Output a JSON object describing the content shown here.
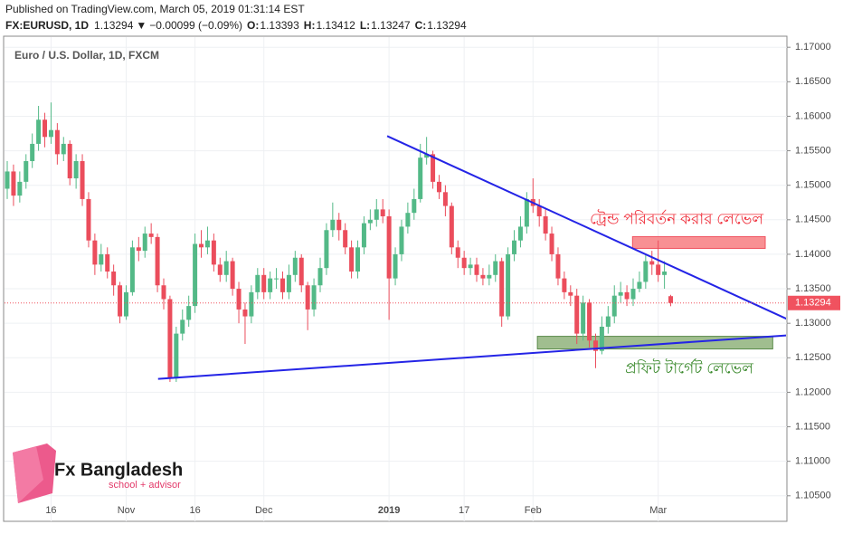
{
  "header": {
    "published": "Published on TradingView.com, March 05, 2019 01:31:14 EST",
    "symbol": "FX:EURUSD, 1D",
    "last": "1.13294",
    "arrow": "▼",
    "change": "−0.00099 (−0.09%)",
    "ohlc": [
      {
        "label": "O:",
        "value": "1.13393"
      },
      {
        "label": "H:",
        "value": "1.13412"
      },
      {
        "label": "L:",
        "value": "1.13247"
      },
      {
        "label": "C:",
        "value": "1.13294"
      }
    ]
  },
  "logo": {
    "name": "Fx Bangladesh",
    "tagline": "school + advisor"
  },
  "chart_data": {
    "type": "candlestick",
    "title": "Euro / U.S. Dollar, 1D, FXCM",
    "categories": [
      null,
      null,
      null,
      null,
      null,
      null,
      null,
      "16",
      null,
      null,
      null,
      null,
      null,
      null,
      null,
      null,
      null,
      null,
      null,
      "Nov",
      null,
      null,
      null,
      null,
      null,
      null,
      null,
      null,
      null,
      null,
      "16",
      null,
      null,
      null,
      null,
      null,
      null,
      null,
      null,
      null,
      null,
      "Dec",
      null,
      null,
      null,
      null,
      null,
      null,
      null,
      null,
      null,
      null,
      null,
      null,
      null,
      null,
      null,
      null,
      null,
      null,
      null,
      "2019",
      null,
      null,
      null,
      null,
      null,
      null,
      null,
      null,
      null,
      null,
      null,
      "17",
      null,
      null,
      null,
      null,
      null,
      null,
      null,
      null,
      null,
      null,
      "Feb",
      null,
      null,
      null,
      null,
      null,
      null,
      null,
      null,
      null,
      null,
      null,
      null,
      null,
      null,
      null,
      null,
      null,
      null,
      null,
      "Mar",
      null,
      null
    ],
    "open": [
      1.1495,
      1.152,
      1.1485,
      1.1505,
      1.1535,
      1.156,
      1.1595,
      1.157,
      1.158,
      1.1545,
      1.156,
      1.151,
      1.1535,
      1.148,
      1.142,
      1.1385,
      1.14,
      1.1375,
      1.1355,
      1.131,
      1.1345,
      1.141,
      1.1405,
      1.143,
      1.1425,
      1.1355,
      1.1335,
      1.122,
      1.1285,
      1.1305,
      1.1325,
      1.1415,
      1.141,
      1.142,
      1.1385,
      1.137,
      1.139,
      1.135,
      1.132,
      1.131,
      1.1345,
      1.137,
      1.1345,
      1.1365,
      1.1365,
      1.1345,
      1.137,
      1.1395,
      1.1355,
      1.132,
      1.1355,
      1.138,
      1.1435,
      1.145,
      1.1435,
      1.141,
      1.1375,
      1.141,
      1.1445,
      1.145,
      1.1465,
      1.1455,
      1.1365,
      1.14,
      1.144,
      1.146,
      1.148,
      1.154,
      1.1545,
      1.1505,
      1.149,
      1.147,
      1.141,
      1.1395,
      1.138,
      1.1385,
      1.137,
      1.1365,
      1.137,
      1.139,
      1.131,
      1.14,
      1.142,
      1.144,
      1.148,
      1.147,
      1.1455,
      1.143,
      1.14,
      1.1365,
      1.1345,
      1.134,
      1.1285,
      1.133,
      1.1275,
      1.126,
      1.1295,
      1.131,
      1.134,
      1.1345,
      1.1335,
      1.135,
      1.136,
      1.139,
      1.1385,
      1.137,
      1.13393
    ],
    "high": [
      1.1535,
      1.153,
      1.152,
      1.1545,
      1.1575,
      1.1615,
      1.1605,
      1.162,
      1.159,
      1.157,
      1.1565,
      1.1545,
      1.1545,
      1.149,
      1.143,
      1.1415,
      1.141,
      1.1385,
      1.136,
      1.1355,
      1.142,
      1.1425,
      1.144,
      1.1445,
      1.143,
      1.1365,
      1.134,
      1.1295,
      1.132,
      1.134,
      1.143,
      1.1435,
      1.144,
      1.143,
      1.1395,
      1.1405,
      1.1395,
      1.136,
      1.133,
      1.1355,
      1.138,
      1.138,
      1.1375,
      1.138,
      1.1375,
      1.1385,
      1.1405,
      1.14,
      1.136,
      1.1365,
      1.1395,
      1.1445,
      1.1475,
      1.146,
      1.1445,
      1.142,
      1.142,
      1.1455,
      1.1465,
      1.148,
      1.148,
      1.1465,
      1.141,
      1.145,
      1.1475,
      1.1495,
      1.156,
      1.157,
      1.155,
      1.1515,
      1.15,
      1.1475,
      1.142,
      1.1405,
      1.1395,
      1.1395,
      1.138,
      1.1385,
      1.14,
      1.1395,
      1.141,
      1.1435,
      1.1455,
      1.149,
      1.151,
      1.148,
      1.1465,
      1.144,
      1.141,
      1.1375,
      1.1355,
      1.135,
      1.134,
      1.1335,
      1.1285,
      1.131,
      1.1325,
      1.1355,
      1.136,
      1.1355,
      1.1365,
      1.1375,
      1.14,
      1.1405,
      1.142,
      1.139,
      1.13412
    ],
    "low": [
      1.148,
      1.147,
      1.1475,
      1.1495,
      1.1525,
      1.155,
      1.1555,
      1.156,
      1.153,
      1.1535,
      1.15,
      1.1495,
      1.147,
      1.141,
      1.137,
      1.1375,
      1.1365,
      1.134,
      1.13,
      1.1305,
      1.134,
      1.139,
      1.1395,
      1.1415,
      1.1345,
      1.132,
      1.1215,
      1.1215,
      1.1275,
      1.1295,
      1.1315,
      1.1395,
      1.14,
      1.1375,
      1.136,
      1.136,
      1.134,
      1.13,
      1.127,
      1.13,
      1.1335,
      1.1335,
      1.1335,
      1.135,
      1.1335,
      1.1335,
      1.136,
      1.1345,
      1.129,
      1.131,
      1.1345,
      1.137,
      1.1425,
      1.142,
      1.14,
      1.1365,
      1.1365,
      1.14,
      1.1435,
      1.144,
      1.1445,
      1.1305,
      1.1355,
      1.139,
      1.143,
      1.145,
      1.1475,
      1.153,
      1.1495,
      1.148,
      1.1455,
      1.14,
      1.138,
      1.137,
      1.137,
      1.136,
      1.1355,
      1.1355,
      1.136,
      1.1295,
      1.1305,
      1.139,
      1.141,
      1.143,
      1.146,
      1.144,
      1.142,
      1.139,
      1.1355,
      1.1335,
      1.1325,
      1.127,
      1.1275,
      1.1265,
      1.1235,
      1.1255,
      1.1285,
      1.13,
      1.133,
      1.1325,
      1.1325,
      1.1345,
      1.135,
      1.137,
      1.136,
      1.135,
      1.13247
    ],
    "close": [
      1.152,
      1.1485,
      1.1505,
      1.1535,
      1.156,
      1.1595,
      1.157,
      1.158,
      1.1545,
      1.156,
      1.151,
      1.1535,
      1.148,
      1.142,
      1.1385,
      1.14,
      1.1375,
      1.1355,
      1.131,
      1.1345,
      1.141,
      1.1405,
      1.143,
      1.1425,
      1.1355,
      1.1335,
      1.122,
      1.1285,
      1.1305,
      1.1325,
      1.1415,
      1.141,
      1.142,
      1.1385,
      1.137,
      1.139,
      1.135,
      1.132,
      1.131,
      1.1345,
      1.137,
      1.1345,
      1.1365,
      1.1365,
      1.1345,
      1.137,
      1.1395,
      1.1355,
      1.132,
      1.1355,
      1.138,
      1.1435,
      1.145,
      1.1435,
      1.141,
      1.1375,
      1.141,
      1.1445,
      1.145,
      1.1465,
      1.1455,
      1.1365,
      1.14,
      1.144,
      1.146,
      1.148,
      1.154,
      1.1545,
      1.1505,
      1.149,
      1.147,
      1.141,
      1.1395,
      1.138,
      1.1385,
      1.137,
      1.1365,
      1.137,
      1.139,
      1.131,
      1.14,
      1.142,
      1.144,
      1.148,
      1.147,
      1.1455,
      1.143,
      1.14,
      1.1365,
      1.1345,
      1.134,
      1.1285,
      1.133,
      1.1275,
      1.126,
      1.1295,
      1.131,
      1.134,
      1.1345,
      1.1335,
      1.135,
      1.136,
      1.139,
      1.1385,
      1.137,
      1.1375,
      1.13294
    ],
    "up_color": "#53b987",
    "down_color": "#eb4d5c",
    "ylim": [
      1.1013,
      1.1716
    ],
    "yticks": [
      {
        "value": 1.105,
        "label": "1.10500"
      },
      {
        "value": 1.11,
        "label": "1.11000"
      },
      {
        "value": 1.115,
        "label": "1.11500"
      },
      {
        "value": 1.12,
        "label": "1.12000"
      },
      {
        "value": 1.125,
        "label": "1.12500"
      },
      {
        "value": 1.13,
        "label": "1.13000"
      },
      {
        "value": 1.135,
        "label": "1.13500"
      },
      {
        "value": 1.14,
        "label": "1.14000"
      },
      {
        "value": 1.145,
        "label": "1.14500"
      },
      {
        "value": 1.15,
        "label": "1.15000"
      },
      {
        "value": 1.155,
        "label": "1.15500"
      },
      {
        "value": 1.16,
        "label": "1.16000"
      },
      {
        "value": 1.165,
        "label": "1.16500"
      },
      {
        "value": 1.17,
        "label": "1.17000"
      }
    ],
    "grid": true,
    "last_price": 1.13294,
    "last_price_color": "#f0525f",
    "trend_lines": [
      {
        "color": "#2424e6",
        "x": [
          60.7,
          124.6
        ],
        "y": [
          1.15713,
          1.13061
        ]
      },
      {
        "color": "#2424e6",
        "x": [
          24.1,
          124.6
        ],
        "y": [
          1.12194,
          1.12825
        ]
      }
    ],
    "zones": [
      {
        "color": "#f77c80",
        "x": [
          99.9,
          121.1
        ],
        "y": [
          1.14085,
          1.14256
        ],
        "label": "ট্রেন্ড পরিবর্তন করার লেভেল",
        "label_color": "#f0303c"
      },
      {
        "color": "#8fb37b",
        "x": [
          84.7,
          122.3
        ],
        "y": [
          1.12628,
          1.12811
        ],
        "label": "প্রফিট টার্গেট লেভেল",
        "label_color": "#3b8a2d"
      }
    ]
  }
}
